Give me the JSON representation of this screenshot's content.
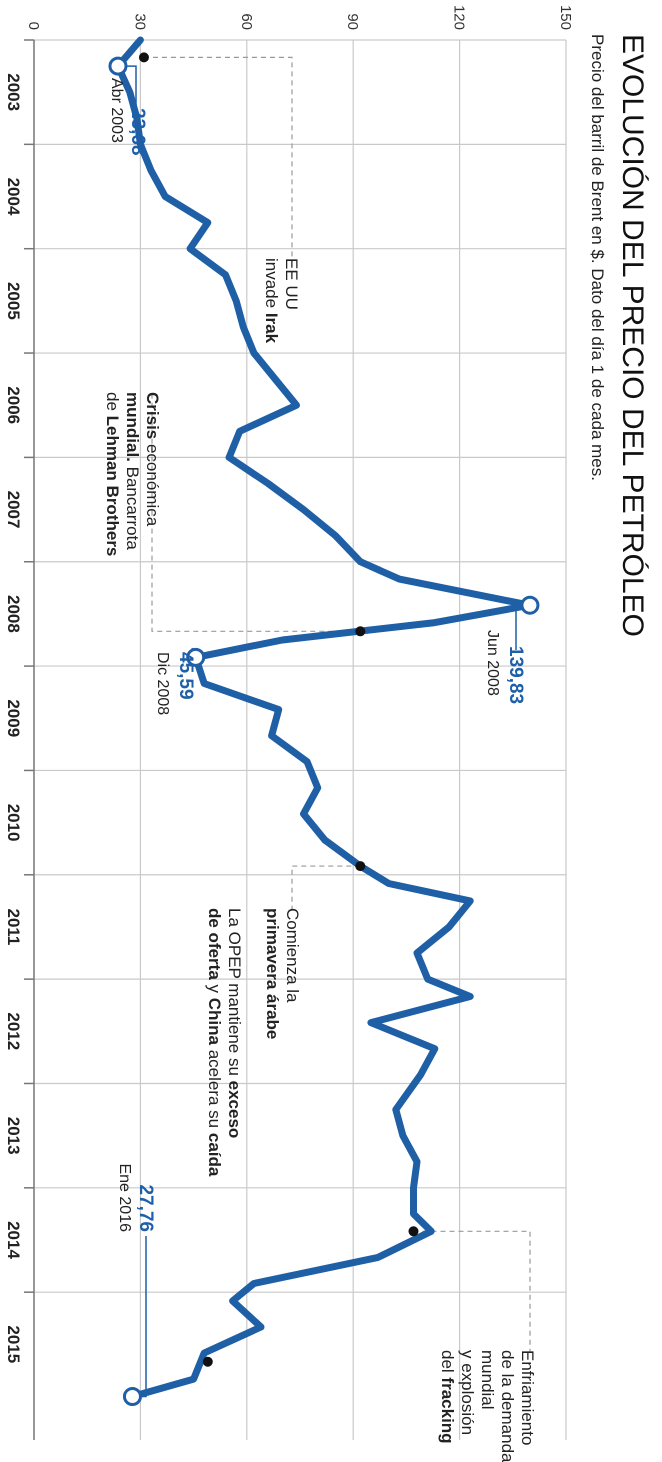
{
  "chart_data": {
    "type": "line",
    "title": "EVOLUCIÓN DEL PRECIO DEL PETRÓLEO",
    "subtitle": "Precio del barril de Brent en $. Dato del día 1 de cada mes.",
    "ylim": [
      0,
      150
    ],
    "yticks": [
      0,
      30,
      60,
      90,
      120,
      150
    ],
    "xlim": [
      "2003-01",
      "2016-06"
    ],
    "categories": [
      "2003",
      "2004",
      "2005",
      "2006",
      "2007",
      "2008",
      "2009",
      "2010",
      "2011",
      "2012",
      "2013",
      "2014",
      "2015"
    ],
    "grid": true,
    "colors": {
      "line": "#1f5fa6",
      "value": "#1d5fa8"
    },
    "series": [
      {
        "x": [
          "2003-01",
          "2003-04",
          "2003-07",
          "2003-10",
          "2004-01",
          "2004-04",
          "2004-07",
          "2004-10",
          "2005-01",
          "2005-04",
          "2005-07",
          "2005-10",
          "2006-01",
          "2006-04",
          "2006-07",
          "2006-10",
          "2007-01",
          "2007-04",
          "2007-07",
          "2007-10",
          "2008-01",
          "2008-03",
          "2008-06",
          "2008-08",
          "2008-10",
          "2008-12",
          "2009-03",
          "2009-06",
          "2009-09",
          "2009-12",
          "2010-03",
          "2010-06",
          "2010-09",
          "2010-12",
          "2011-02",
          "2011-04",
          "2011-07",
          "2011-10",
          "2012-01",
          "2012-03",
          "2012-06",
          "2012-09",
          "2012-12",
          "2013-04",
          "2013-07",
          "2013-10",
          "2014-01",
          "2014-04",
          "2014-06",
          "2014-09",
          "2014-12",
          "2015-02",
          "2015-05",
          "2015-08",
          "2015-11",
          "2016-01"
        ],
        "values": [
          30,
          23.68,
          27,
          29,
          30,
          33,
          37,
          49,
          44,
          54,
          57,
          59,
          62,
          68,
          74,
          58,
          55,
          66,
          76,
          85,
          92,
          103,
          139.83,
          113,
          70,
          45.59,
          48,
          69,
          67,
          77,
          80,
          76,
          82,
          92,
          100,
          123,
          117,
          108,
          111,
          123,
          95,
          113,
          109,
          102,
          104,
          108,
          107,
          107,
          112,
          97,
          62,
          56,
          64,
          48,
          45,
          27.76
        ]
      }
    ],
    "markers": [
      {
        "x": "2003-04",
        "y": 23.68
      },
      {
        "x": "2008-06",
        "y": 139.83
      },
      {
        "x": "2008-12",
        "y": 45.59
      },
      {
        "x": "2016-01",
        "y": 27.76
      }
    ],
    "events": [
      {
        "x": "2003-03",
        "y": 31
      },
      {
        "x": "2008-09",
        "y": 92
      },
      {
        "x": "2010-12",
        "y": 92
      },
      {
        "x": "2014-06",
        "y": 107
      },
      {
        "x": "2015-09",
        "y": 49
      }
    ],
    "annotations": {
      "low2003": {
        "value": "23,68",
        "date": "Abr 2003"
      },
      "peak2008": {
        "value": "139,83",
        "date": "Jun 2008"
      },
      "low2008": {
        "value": "45,59",
        "date": "Dic 2008"
      },
      "low2016": {
        "value": "27,76",
        "date": "Ene 2016"
      },
      "irak": {
        "l1": "EE UU",
        "l2a": "invade ",
        "l2b": "Irak"
      },
      "crisis": {
        "l1a": "Crisis",
        "l1b": " económica",
        "l2a": "mundial.",
        "l2b": " Bancarrota",
        "l3a": "de ",
        "l3b": "Lehman Brothers"
      },
      "primavera": {
        "l1": "Comienza la",
        "l2": "primavera árabe"
      },
      "opep": {
        "l1a": "La OPEP mantiene su ",
        "l1b": "exceso",
        "l2a": "de oferta",
        "l2b": " y ",
        "l2c": "China",
        "l2d": " acelera su ",
        "l2e": "caída"
      },
      "fracking": {
        "l1": "Enfriamiento",
        "l2": "de la demanda",
        "l3": "mundial",
        "l4": "y explosión",
        "l5a": "del ",
        "l5b": "fracking"
      }
    }
  }
}
